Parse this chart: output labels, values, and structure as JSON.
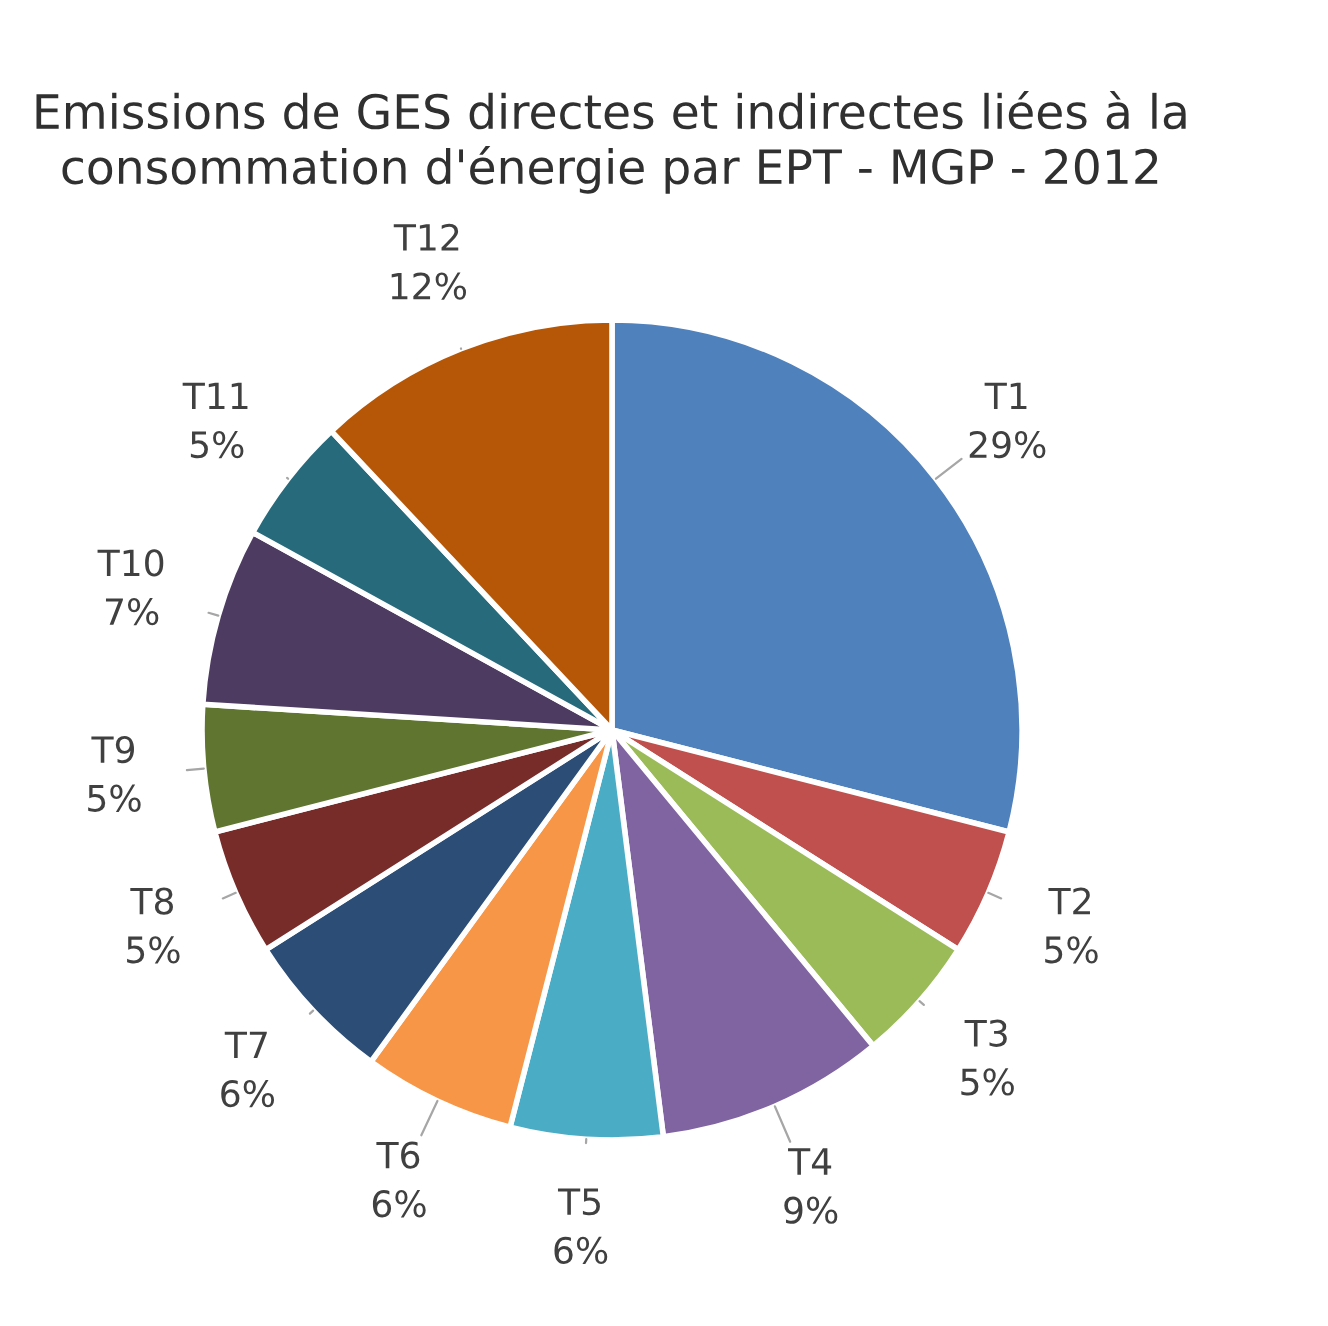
{
  "chart_data": {
    "type": "pie",
    "title": "Emissions de GES directes et indirectes liées à la consommation d'énergie par EPT - MGP - 2012",
    "categories": [
      "T1",
      "T2",
      "T3",
      "T4",
      "T5",
      "T6",
      "T7",
      "T8",
      "T9",
      "T10",
      "T11",
      "T12"
    ],
    "values": [
      29,
      5,
      5,
      9,
      6,
      6,
      6,
      5,
      5,
      7,
      5,
      12
    ],
    "value_labels": [
      "29%",
      "5%",
      "5%",
      "9%",
      "6%",
      "6%",
      "6%",
      "5%",
      "5%",
      "7%",
      "5%",
      "12%"
    ],
    "colors": [
      "#4f81bd",
      "#c0504d",
      "#9bbb59",
      "#8064a2",
      "#4bacc6",
      "#f79646",
      "#2c4d75",
      "#772c2a",
      "#5f7530",
      "#4d3b62",
      "#276a7c",
      "#b65708"
    ],
    "legend": false
  }
}
